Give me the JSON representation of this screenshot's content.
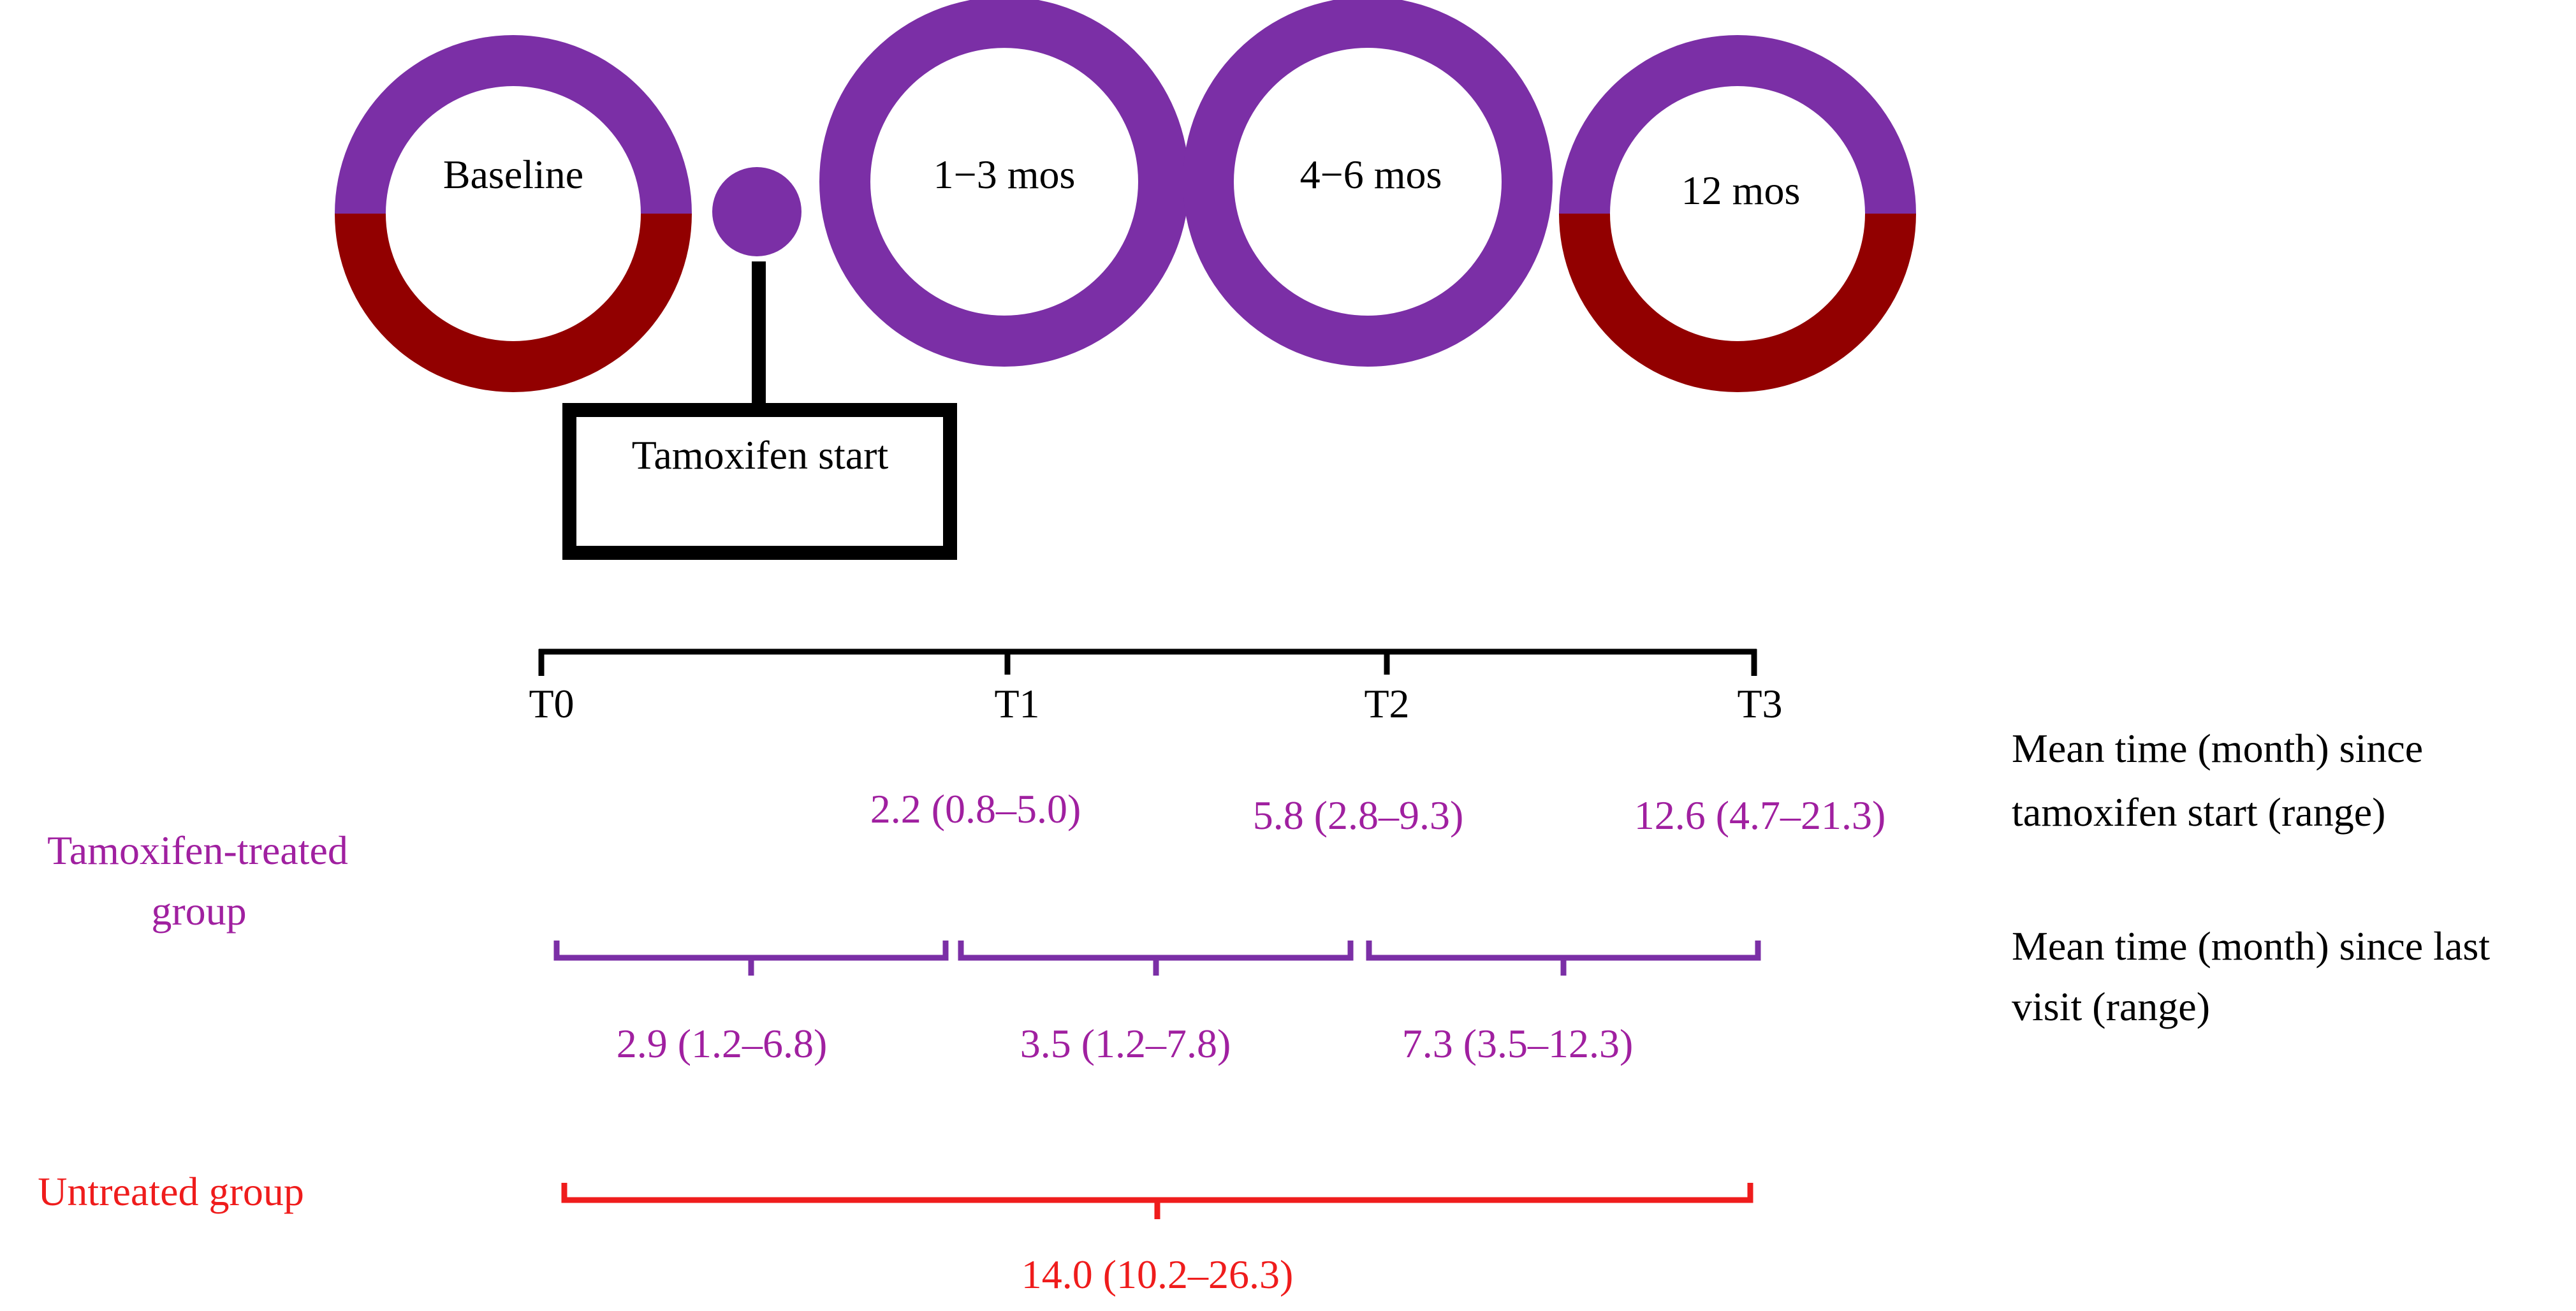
{
  "colors": {
    "purple": "#7b2fa6",
    "dark_red": "#920000",
    "red": "#ef1c1c",
    "black": "#000000",
    "label_purple": "#a020a0"
  },
  "visits": [
    {
      "id": "baseline",
      "label": "Baseline",
      "fill": "split"
    },
    {
      "id": "m1-3",
      "label": "1−3 mos",
      "fill": "purple"
    },
    {
      "id": "m4-6",
      "label": "4−6 mos",
      "fill": "purple"
    },
    {
      "id": "m12",
      "label": "12 mos",
      "fill": "split"
    }
  ],
  "tamoxifen_start": {
    "label": "Tamoxifen start"
  },
  "timeline": {
    "ticks": [
      "T0",
      "T1",
      "T2",
      "T3"
    ]
  },
  "since_start": {
    "legend": [
      "Mean time (month) since",
      "tamoxifen start (range)"
    ],
    "values": [
      "2.2 (0.8–5.0)",
      "5.8 (2.8–9.3)",
      "12.6 (4.7–21.3)"
    ]
  },
  "treated_group": {
    "label": [
      "Tamoxifen-treated",
      "group"
    ]
  },
  "since_last": {
    "legend": [
      "Mean time (month) since last",
      "visit (range)"
    ],
    "values": [
      "2.9 (1.2–6.8)",
      "3.5 (1.2–7.8)",
      "7.3 (3.5–12.3)"
    ]
  },
  "untreated_group": {
    "label": "Untreated group",
    "value": "14.0 (10.2–26.3)"
  }
}
